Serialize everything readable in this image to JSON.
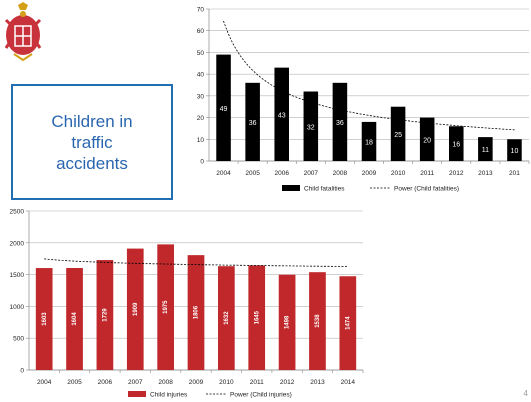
{
  "slide": {
    "title_text": "Children in traffic accidents",
    "corner_mark": "4"
  },
  "colors": {
    "fatality_bar": "#000000",
    "injury_bar": "#c0282b",
    "title_border": "#1f6fb2",
    "title_text": "#2a66b0"
  },
  "icons": {
    "crest": "serbian-coat-of-arms-icon"
  },
  "chart_data": [
    {
      "type": "bar",
      "categories": [
        "2004",
        "2005",
        "2006",
        "2007",
        "2008",
        "2009",
        "2010",
        "2011",
        "2012",
        "2013",
        "2014"
      ],
      "tick_labels": [
        "2004",
        "2005",
        "2006",
        "2007",
        "2008",
        "2009",
        "2010",
        "2011",
        "2012",
        "2013",
        "201"
      ],
      "series": [
        {
          "name": "Child fatalities",
          "values": [
            49,
            36,
            43,
            32,
            36,
            18,
            25,
            20,
            16,
            11,
            10
          ]
        }
      ],
      "trendline": {
        "name": "Power (Child fatalities)",
        "type": "power"
      },
      "ylim": [
        0,
        70
      ],
      "yticks": [
        0,
        10,
        20,
        30,
        40,
        50,
        60,
        70
      ],
      "grid": true,
      "legend": "bottom",
      "data_labels": true
    },
    {
      "type": "bar",
      "categories": [
        "2004",
        "2005",
        "2006",
        "2007",
        "2008",
        "2009",
        "2010",
        "2011",
        "2012",
        "2013",
        "2014"
      ],
      "tick_labels": [
        "2004",
        "2005",
        "2006",
        "2007",
        "2008",
        "2009",
        "2010",
        "2011",
        "2012",
        "2013",
        "2014"
      ],
      "series": [
        {
          "name": "Child injuries",
          "values": [
            1603,
            1604,
            1729,
            1909,
            1975,
            1806,
            1632,
            1645,
            1498,
            1538,
            1474
          ]
        }
      ],
      "trendline": {
        "name": "Power (Child injuries)",
        "type": "power"
      },
      "ylim": [
        0,
        2500
      ],
      "yticks": [
        0,
        500,
        1000,
        1500,
        2000,
        2500
      ],
      "grid": true,
      "legend": "bottom",
      "data_labels": true
    }
  ]
}
